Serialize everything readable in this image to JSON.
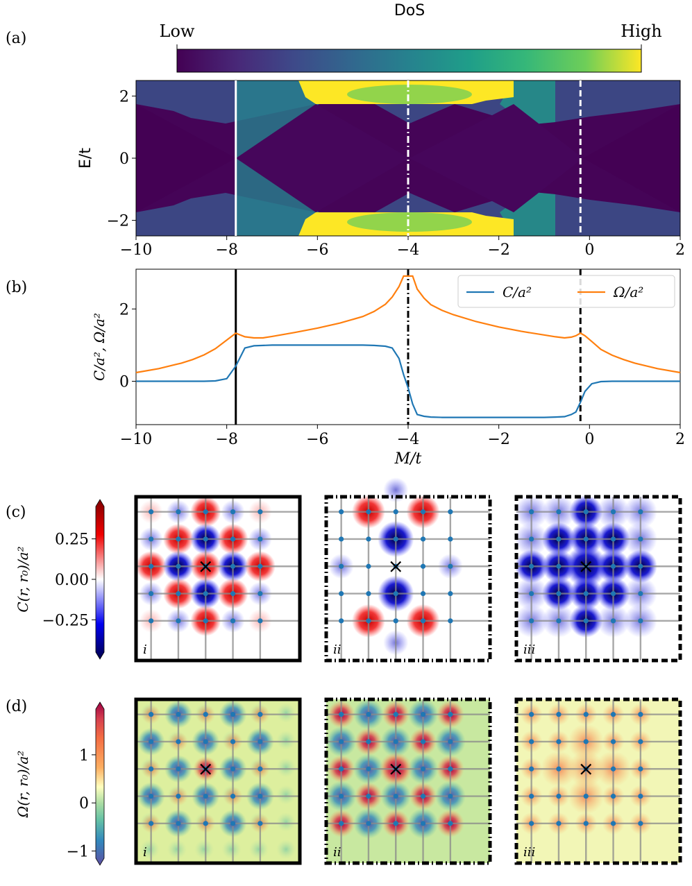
{
  "panel_labels": {
    "a": "(a)",
    "b": "(b)",
    "c": "(c)",
    "d": "(d)"
  },
  "colorbar_a": {
    "title": "DoS",
    "low_label": "Low",
    "high_label": "High"
  },
  "sub_labels": [
    "i",
    "ii",
    "iii"
  ],
  "marker_symbol": "×",
  "chart_data": [
    {
      "id": "a",
      "type": "heatmap",
      "title": "",
      "xlabel": "",
      "ylabel": "E/t",
      "xlim": [
        -10,
        2
      ],
      "ylim": [
        -2.5,
        2.5
      ],
      "xticks": [
        -10,
        -8,
        -6,
        -4,
        -2,
        0,
        2
      ],
      "yticks": [
        -2,
        0,
        2
      ],
      "xtick_labels": [
        "−10",
        "−8",
        "−6",
        "−4",
        "−2",
        "0",
        "2"
      ],
      "ytick_labels": [
        "−2",
        "0",
        "2"
      ],
      "colormap": "viridis",
      "vlines": [
        {
          "x": -7.8,
          "style": "solid",
          "color": "#ffffff"
        },
        {
          "x": -4.0,
          "style": "dashdot",
          "color": "#ffffff"
        },
        {
          "x": -0.2,
          "style": "dashed",
          "color": "#ffffff"
        }
      ]
    },
    {
      "id": "b",
      "type": "line",
      "xlabel": "M/t",
      "ylabel": "C/a², Ω/a²",
      "xlim": [
        -10,
        2
      ],
      "ylim": [
        -1.2,
        3.1
      ],
      "xticks": [
        -10,
        -8,
        -6,
        -4,
        -2,
        0,
        2
      ],
      "yticks": [
        0,
        2
      ],
      "xtick_labels": [
        "−10",
        "−8",
        "−6",
        "−4",
        "−2",
        "0",
        "2"
      ],
      "ytick_labels": [
        "0",
        "2"
      ],
      "legend": "top-right",
      "x": [
        -10,
        -9.5,
        -9,
        -8.75,
        -8.5,
        -8.25,
        -8,
        -7.8,
        -7.6,
        -7.4,
        -7.2,
        -7,
        -6.5,
        -6,
        -5.5,
        -5,
        -4.75,
        -4.5,
        -4.35,
        -4.2,
        -4.1,
        -4.0,
        -3.9,
        -3.8,
        -3.65,
        -3.5,
        -3.25,
        -3,
        -2.5,
        -2,
        -1.5,
        -1,
        -0.75,
        -0.55,
        -0.4,
        -0.3,
        -0.2,
        -0.1,
        0.05,
        0.25,
        0.5,
        0.75,
        1,
        1.5,
        2
      ],
      "series": [
        {
          "name": "C/a²",
          "color": "#1f77b4",
          "values": [
            0,
            0,
            0,
            0,
            0,
            0.01,
            0.07,
            0.42,
            0.92,
            0.98,
            0.99,
            1,
            1,
            1,
            1,
            1,
            0.99,
            0.97,
            0.92,
            0.63,
            0.18,
            -0.18,
            -0.63,
            -0.92,
            -0.97,
            -0.99,
            -1,
            -1,
            -1,
            -1,
            -1,
            -1,
            -0.99,
            -0.98,
            -0.92,
            -0.85,
            -0.58,
            -0.28,
            -0.07,
            -0.01,
            0,
            0,
            0,
            0,
            0
          ]
        },
        {
          "name": "Ω/a²",
          "color": "#ff7f0e",
          "values": [
            0.24,
            0.35,
            0.5,
            0.6,
            0.73,
            0.9,
            1.14,
            1.33,
            1.23,
            1.2,
            1.2,
            1.24,
            1.35,
            1.47,
            1.61,
            1.79,
            1.93,
            2.13,
            2.33,
            2.62,
            2.91,
            2.91,
            2.91,
            2.55,
            2.3,
            2.12,
            1.96,
            1.84,
            1.65,
            1.5,
            1.38,
            1.28,
            1.23,
            1.2,
            1.22,
            1.26,
            1.33,
            1.26,
            1.1,
            0.88,
            0.72,
            0.6,
            0.5,
            0.35,
            0.24
          ]
        }
      ],
      "vlines": [
        {
          "x": -7.8,
          "style": "solid",
          "color": "#000000"
        },
        {
          "x": -4.0,
          "style": "dashdot",
          "color": "#000000"
        },
        {
          "x": -0.2,
          "style": "dashed",
          "color": "#000000"
        }
      ]
    },
    {
      "id": "c",
      "type": "heatmap",
      "ylabel": "C(r, r₀)/a²",
      "colormap": "seismic",
      "colorbar_ticks": [
        0.25,
        0.0,
        -0.25
      ],
      "colorbar_tick_labels": [
        "0.25",
        "0.00",
        "−0.25"
      ],
      "colorbar_range": [
        -0.45,
        0.45
      ],
      "subpanels": [
        "i",
        "ii",
        "iii"
      ],
      "border_styles": [
        "solid",
        "dashdot",
        "dashed"
      ]
    },
    {
      "id": "d",
      "type": "heatmap",
      "ylabel": "Ω(r, r₀)/a²",
      "colormap": "Spectral_r",
      "colorbar_ticks": [
        1,
        0,
        -1
      ],
      "colorbar_tick_labels": [
        "1",
        "0",
        "−1"
      ],
      "colorbar_range": [
        -1.15,
        1.95
      ],
      "subpanels": [
        "i",
        "ii",
        "iii"
      ],
      "border_styles": [
        "solid",
        "dashdot",
        "dashed"
      ]
    }
  ]
}
